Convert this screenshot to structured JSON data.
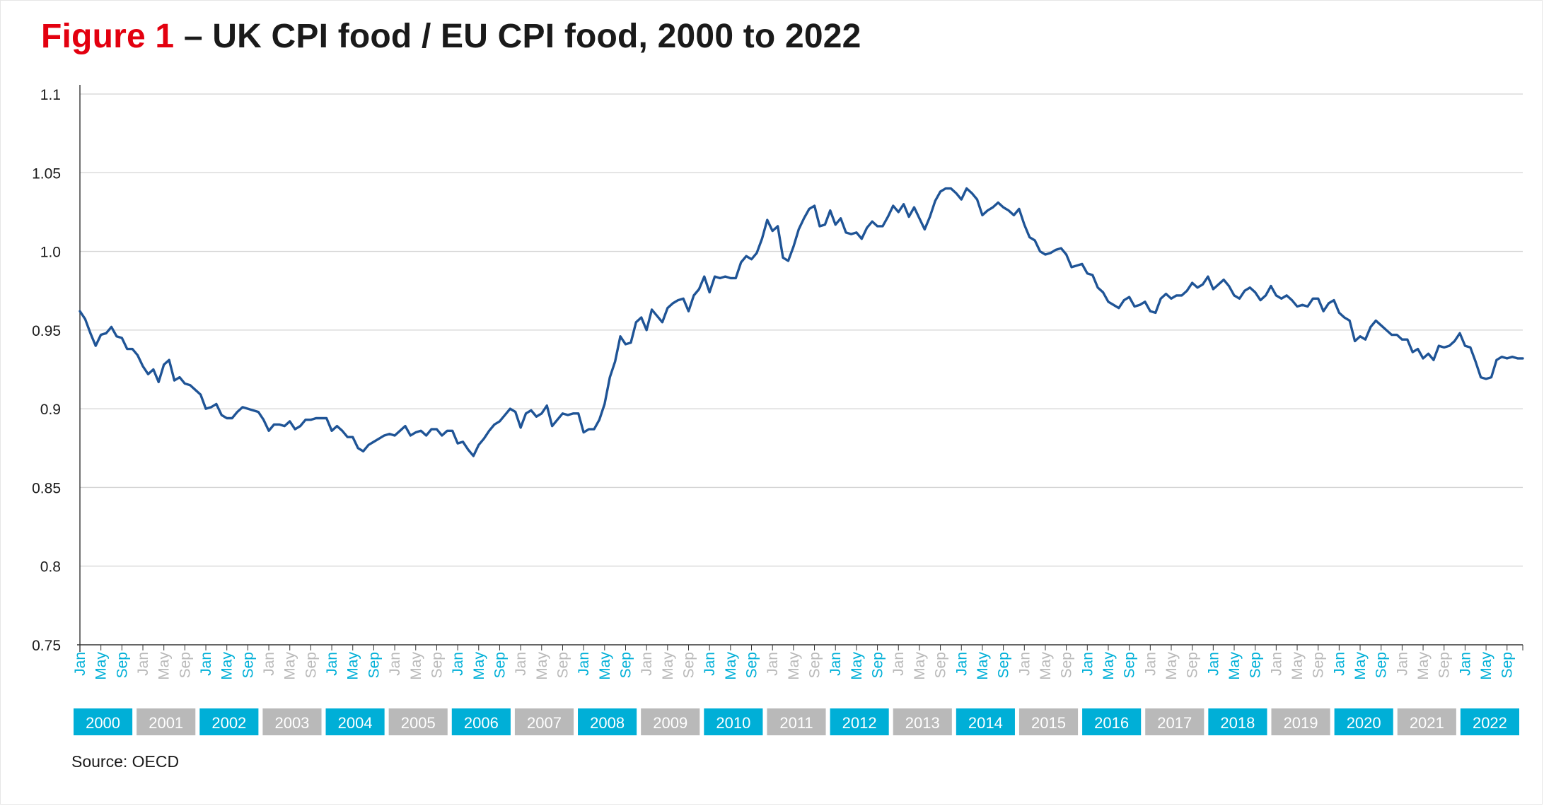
{
  "title": {
    "figure_label": "Figure 1",
    "text": " – UK CPI food / EU CPI food, 2000 to 2022"
  },
  "source": "Source: OECD",
  "colors": {
    "line": "#1f5496",
    "accent_year": "#00afd7",
    "alt_year": "#b9b9b9",
    "figure_label": "#e3000f",
    "grid": "#d4d4d4"
  },
  "chart_data": {
    "type": "line",
    "title": "UK CPI food / EU CPI food, 2000 to 2022",
    "xlabel": "",
    "ylabel": "",
    "ylim": [
      0.75,
      1.1
    ],
    "y_ticks": [
      0.75,
      0.8,
      0.85,
      0.9,
      0.95,
      1.0,
      1.05,
      1.1
    ],
    "y_tick_labels": [
      "0.75",
      "0.8",
      "0.85",
      "0.9",
      "0.95",
      "1.0",
      "1.05",
      "1.1"
    ],
    "grid": true,
    "x_start": "2000-01",
    "month_tick_labels": [
      "Jan",
      "May",
      "Sep"
    ],
    "years": [
      "2000",
      "2001",
      "2002",
      "2003",
      "2004",
      "2005",
      "2006",
      "2007",
      "2008",
      "2009",
      "2010",
      "2011",
      "2012",
      "2013",
      "2014",
      "2015",
      "2016",
      "2017",
      "2018",
      "2019",
      "2020",
      "2021",
      "2022"
    ],
    "series": [
      {
        "values": [
          0.962,
          0.957,
          0.948,
          0.94,
          0.947,
          0.948,
          0.952,
          0.946,
          0.945,
          0.938,
          0.938,
          0.934,
          0.927,
          0.922,
          0.925,
          0.917,
          0.928,
          0.931,
          0.918,
          0.92,
          0.916,
          0.915,
          0.912,
          0.909,
          0.9,
          0.901,
          0.903,
          0.896,
          0.894,
          0.894,
          0.898,
          0.901,
          0.9,
          0.899,
          0.898,
          0.893,
          0.886,
          0.89,
          0.89,
          0.889,
          0.892,
          0.887,
          0.889,
          0.893,
          0.893,
          0.894,
          0.894,
          0.894,
          0.886,
          0.889,
          0.886,
          0.882,
          0.882,
          0.875,
          0.873,
          0.877,
          0.879,
          0.881,
          0.883,
          0.884,
          0.883,
          0.886,
          0.889,
          0.883,
          0.885,
          0.886,
          0.883,
          0.887,
          0.887,
          0.883,
          0.886,
          0.886,
          0.878,
          0.879,
          0.874,
          0.87,
          0.877,
          0.881,
          0.886,
          0.89,
          0.892,
          0.896,
          0.9,
          0.898,
          0.888,
          0.897,
          0.899,
          0.895,
          0.897,
          0.902,
          0.889,
          0.893,
          0.897,
          0.896,
          0.897,
          0.897,
          0.885,
          0.887,
          0.887,
          0.893,
          0.903,
          0.92,
          0.93,
          0.946,
          0.941,
          0.942,
          0.955,
          0.958,
          0.95,
          0.963,
          0.959,
          0.955,
          0.964,
          0.967,
          0.969,
          0.97,
          0.962,
          0.972,
          0.976,
          0.984,
          0.974,
          0.984,
          0.983,
          0.984,
          0.983,
          0.983,
          0.993,
          0.997,
          0.995,
          0.999,
          1.008,
          1.02,
          1.013,
          1.016,
          0.996,
          0.994,
          1.003,
          1.014,
          1.021,
          1.027,
          1.029,
          1.016,
          1.017,
          1.026,
          1.017,
          1.021,
          1.012,
          1.011,
          1.012,
          1.008,
          1.015,
          1.019,
          1.016,
          1.016,
          1.022,
          1.029,
          1.025,
          1.03,
          1.022,
          1.028,
          1.021,
          1.014,
          1.022,
          1.032,
          1.038,
          1.04,
          1.04,
          1.037,
          1.033,
          1.04,
          1.037,
          1.033,
          1.023,
          1.026,
          1.028,
          1.031,
          1.028,
          1.026,
          1.023,
          1.027,
          1.017,
          1.009,
          1.007,
          1.0,
          0.998,
          0.999,
          1.001,
          1.002,
          0.998,
          0.99,
          0.991,
          0.992,
          0.986,
          0.985,
          0.977,
          0.974,
          0.968,
          0.966,
          0.964,
          0.969,
          0.971,
          0.965,
          0.966,
          0.968,
          0.962,
          0.961,
          0.97,
          0.973,
          0.97,
          0.972,
          0.972,
          0.975,
          0.98,
          0.977,
          0.979,
          0.984,
          0.976,
          0.979,
          0.982,
          0.978,
          0.972,
          0.97,
          0.975,
          0.977,
          0.974,
          0.969,
          0.972,
          0.978,
          0.972,
          0.97,
          0.972,
          0.969,
          0.965,
          0.966,
          0.965,
          0.97,
          0.97,
          0.962,
          0.967,
          0.969,
          0.961,
          0.958,
          0.956,
          0.943,
          0.946,
          0.944,
          0.952,
          0.956,
          0.953,
          0.95,
          0.947,
          0.947,
          0.944,
          0.944,
          0.936,
          0.938,
          0.932,
          0.935,
          0.931,
          0.94,
          0.939,
          0.94,
          0.943,
          0.948,
          0.94,
          0.939,
          0.93,
          0.92,
          0.919,
          0.92,
          0.931,
          0.933,
          0.932,
          0.933,
          0.932,
          0.932
        ]
      }
    ]
  }
}
